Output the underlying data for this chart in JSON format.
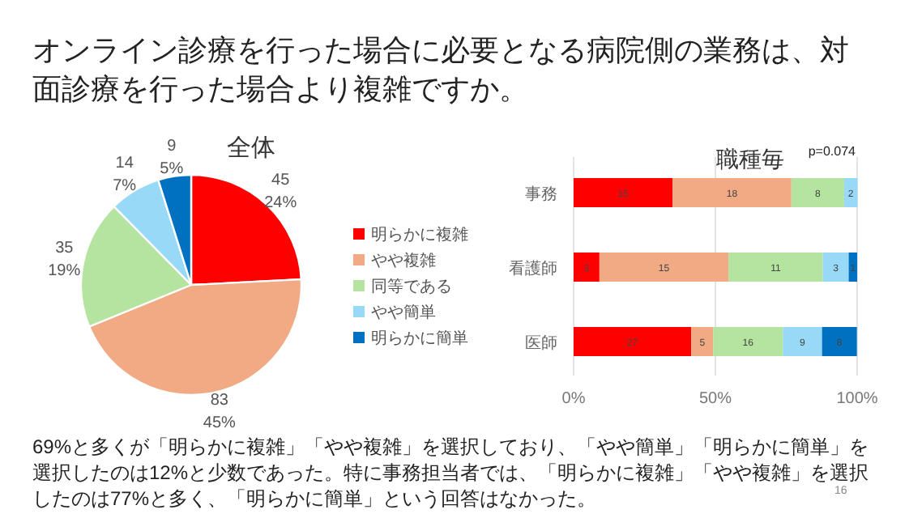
{
  "chart_data": [
    {
      "type": "pie",
      "title": "全体",
      "categories": [
        "明らかに複雑",
        "やや複雑",
        "同等である",
        "やや簡単",
        "明らかに簡単"
      ],
      "values": [
        45,
        83,
        35,
        14,
        9
      ],
      "colors": [
        "#ff0000",
        "#f2aa84",
        "#b5e3a0",
        "#97d9f7",
        "#0070c0"
      ],
      "value_labels": [
        "45\n24%",
        "83\n45%",
        "35\n19%",
        "14\n7%",
        "9\n5%"
      ],
      "legend": "right",
      "annotations": [
        "オンライン診療を行った場合に必要となる病院側の業務は、対面診療を行った場合より複雑ですか。",
        "69%と多くが「明らかに複雑」「やや複雑」を選択しており、「やや簡単」「明らかに簡単」を選択したのは12%と少数であった。特に事務担当者では、「明らかに複雑」「やや複雑」を選択したのは77%と多く、「明らかに簡単」という回答はなかった。",
        "16"
      ]
    },
    {
      "type": "bar",
      "orientation": "horizontal",
      "stacked": true,
      "title": "職種毎",
      "categories": [
        "事務",
        "看護師",
        "医師"
      ],
      "xlim": [
        0,
        100
      ],
      "xticks": [
        {
          "value": 0,
          "label": "0%"
        },
        {
          "value": 50,
          "label": "50%"
        },
        {
          "value": 100,
          "label": "100%"
        }
      ],
      "grid": "x",
      "annotations": [
        "p=0.074",
        "15",
        "18",
        "8",
        "2",
        "3",
        "15",
        "11",
        "3",
        "1",
        "27",
        "5",
        "16",
        "9",
        "8"
      ],
      "series": [
        {
          "color": "#ff0000",
          "values": [
            34.9,
            9.1,
            41.5
          ]
        },
        {
          "color": "#f2aa84",
          "values": [
            41.9,
            45.5,
            7.7
          ]
        },
        {
          "color": "#b5e3a0",
          "values": [
            18.6,
            33.3,
            24.6
          ]
        },
        {
          "color": "#97d9f7",
          "values": [
            4.7,
            9.1,
            13.8
          ]
        },
        {
          "color": "#0070c0",
          "values": [
            null,
            3.0,
            12.3
          ]
        }
      ]
    }
  ]
}
